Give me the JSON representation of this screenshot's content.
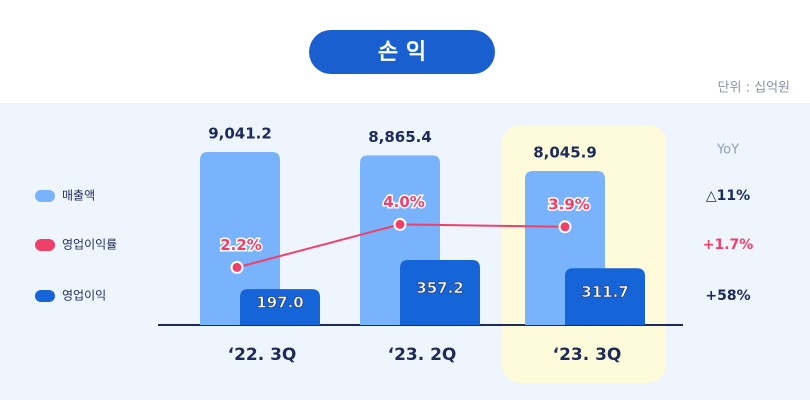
{
  "chart_data": {
    "type": "bar",
    "title": "손 익",
    "unit": "단위 : 십억원",
    "yoy_title": "YoY",
    "categories": [
      "‘22. 3Q",
      "‘23. 2Q",
      "‘23. 3Q"
    ],
    "series": [
      {
        "name": "매출액",
        "type": "bar",
        "color": "#79b3fb",
        "values": [
          9041.2,
          8865.4,
          8045.9
        ],
        "value_labels": [
          "9,041.2",
          "8,865.4",
          "8,045.9"
        ],
        "yoy": "△11%"
      },
      {
        "name": "영업이익률",
        "type": "line",
        "color": "#f0406a",
        "values": [
          2.2,
          4.0,
          3.9
        ],
        "value_labels": [
          "2.2%",
          "4.0%",
          "3.9%"
        ],
        "yoy": "+1.7%"
      },
      {
        "name": "영업이익",
        "type": "bar",
        "color": "#1565d8",
        "values": [
          197.0,
          357.2,
          311.7
        ],
        "value_labels": [
          "197.0",
          "357.2",
          "311.7"
        ],
        "yoy": "+58%"
      }
    ]
  }
}
